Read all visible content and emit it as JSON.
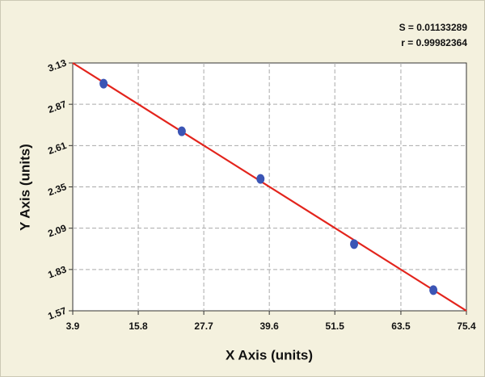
{
  "chart_data": {
    "type": "scatter",
    "x_label": "X Axis (units)",
    "y_label": "Y Axis (units)",
    "annotations": [
      "S = 0.01133289",
      "r = 0.99982364"
    ],
    "x": [
      9.5,
      23.7,
      38.0,
      55.0,
      69.4
    ],
    "values": [
      3.0,
      2.7,
      2.4,
      1.99,
      1.7
    ],
    "color": "#3b55b5",
    "fit_line": {
      "x": [
        3.9,
        75.4
      ],
      "y": [
        3.13,
        1.57
      ],
      "color": "#e3241c"
    },
    "xlim": [
      3.9,
      75.4
    ],
    "xticks": [
      3.9,
      15.8,
      27.7,
      39.6,
      51.5,
      63.5,
      75.4
    ],
    "ylim": [
      1.57,
      3.13
    ],
    "yticks": [
      1.57,
      1.83,
      2.09,
      2.35,
      2.61,
      2.87,
      3.13
    ],
    "grid": true
  }
}
